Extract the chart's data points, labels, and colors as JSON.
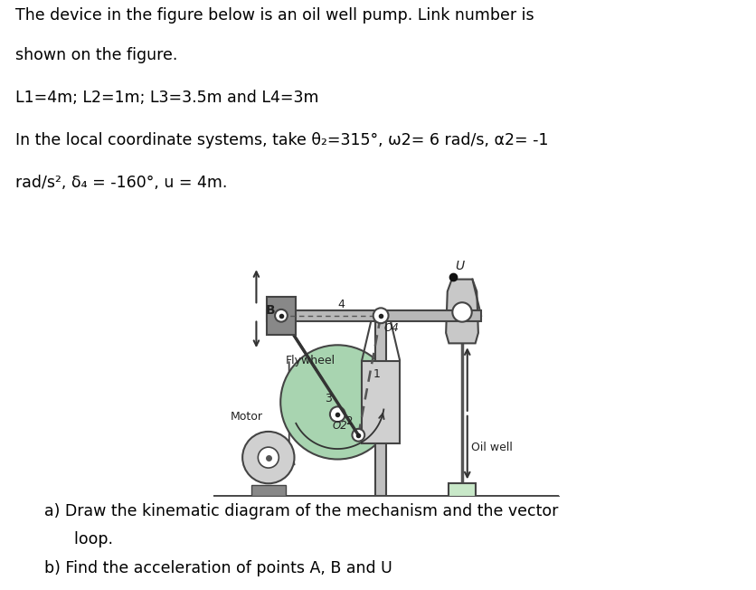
{
  "title_line1": "The device in the figure below is an oil well pump. Link number is",
  "title_line2": "shown on the figure.",
  "param_line": "L1=4m; L2=1m; L3=3.5m and L4=3m",
  "coord_line1": "In the local coordinate systems, take θ₂=315°, ω2= 6 rad/s, α2= -1",
  "coord_line2": "rad/s², δ₄ = -160°, u = 4m.",
  "question_a": "a) Draw the kinematic diagram of the mechanism and the vector",
  "question_a2": "      loop.",
  "question_b": "b) Find the acceleration of points A, B and U",
  "bg_color": "#ffffff",
  "fig_bg": "#e8f5f0",
  "text_color": "#000000",
  "flywheel_color": "#a8d4b0",
  "dark_gray": "#404040",
  "motor_color": "#c8c8c8",
  "beam_color": "#b8b8b8",
  "support_color": "#c0c0c0",
  "pump_head_color": "#c8c8c8"
}
